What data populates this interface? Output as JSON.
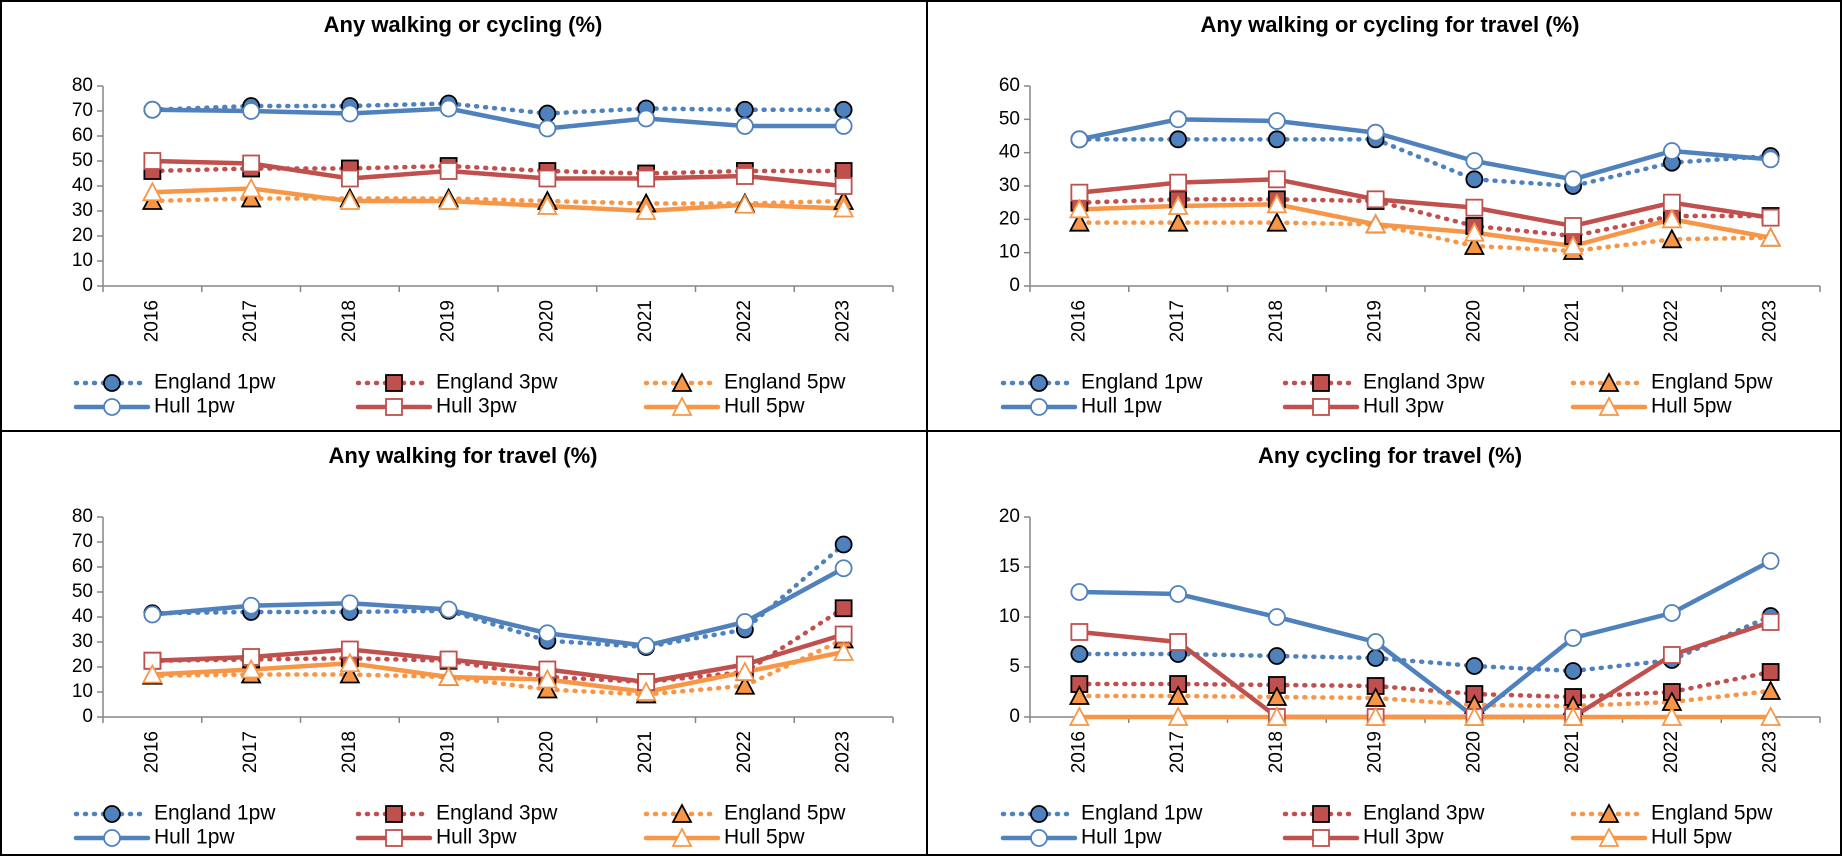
{
  "chart_data": [
    {
      "type": "line",
      "title": "Any walking or cycling (%)",
      "categories": [
        "2016",
        "2017",
        "2018",
        "2019",
        "2020",
        "2021",
        "2022",
        "2023"
      ],
      "ylim": [
        0,
        80
      ],
      "yticks": [
        0,
        10,
        20,
        30,
        40,
        50,
        60,
        70,
        80
      ],
      "series": [
        {
          "name": "England 1pw",
          "color": "#4f81bd",
          "line": "dotted",
          "marker": "circle",
          "marker_fill": "filled",
          "values": [
            70.5,
            72,
            72,
            73,
            69,
            71,
            70.5,
            70.5
          ]
        },
        {
          "name": "England 3pw",
          "color": "#c0504d",
          "line": "dotted",
          "marker": "square",
          "marker_fill": "filled",
          "values": [
            46,
            47,
            47,
            48,
            46,
            45,
            46,
            46
          ]
        },
        {
          "name": "England 5pw",
          "color": "#f79646",
          "line": "dotted",
          "marker": "triangle",
          "marker_fill": "filled",
          "values": [
            34,
            35,
            35,
            35,
            34,
            33,
            33,
            34
          ]
        },
        {
          "name": "Hull 1pw",
          "color": "#4f81bd",
          "line": "solid",
          "marker": "circle",
          "marker_fill": "hollow",
          "values": [
            70.5,
            70,
            69,
            71,
            63,
            67,
            64,
            64
          ]
        },
        {
          "name": "Hull 3pw",
          "color": "#c0504d",
          "line": "solid",
          "marker": "square",
          "marker_fill": "hollow",
          "values": [
            50,
            49,
            43,
            46,
            43,
            43,
            44,
            40
          ]
        },
        {
          "name": "Hull 5pw",
          "color": "#f79646",
          "line": "solid",
          "marker": "triangle",
          "marker_fill": "hollow",
          "values": [
            37.5,
            39,
            34,
            34,
            32,
            30,
            32.5,
            31
          ]
        }
      ]
    },
    {
      "type": "line",
      "title": "Any walking or cycling for travel (%)",
      "categories": [
        "2016",
        "2017",
        "2018",
        "2019",
        "2020",
        "2021",
        "2022",
        "2023"
      ],
      "ylim": [
        0,
        60
      ],
      "yticks": [
        0,
        10,
        20,
        30,
        40,
        50,
        60
      ],
      "series": [
        {
          "name": "England 1pw",
          "color": "#4f81bd",
          "line": "dotted",
          "marker": "circle",
          "marker_fill": "filled",
          "values": [
            44,
            44,
            44,
            44,
            32,
            30,
            37,
            39
          ]
        },
        {
          "name": "England 3pw",
          "color": "#c0504d",
          "line": "dotted",
          "marker": "square",
          "marker_fill": "filled",
          "values": [
            25,
            26,
            26,
            25.5,
            18,
            15,
            21,
            21
          ]
        },
        {
          "name": "England 5pw",
          "color": "#f79646",
          "line": "dotted",
          "marker": "triangle",
          "marker_fill": "filled",
          "values": [
            19,
            19,
            19,
            18.5,
            12,
            10.5,
            14,
            14.5
          ]
        },
        {
          "name": "Hull 1pw",
          "color": "#4f81bd",
          "line": "solid",
          "marker": "circle",
          "marker_fill": "hollow",
          "values": [
            44,
            50,
            49.5,
            46,
            37.5,
            32,
            40.5,
            38
          ]
        },
        {
          "name": "Hull 3pw",
          "color": "#c0504d",
          "line": "solid",
          "marker": "square",
          "marker_fill": "hollow",
          "values": [
            28,
            31,
            32,
            26,
            23.5,
            18,
            25,
            20.5
          ]
        },
        {
          "name": "Hull 5pw",
          "color": "#f79646",
          "line": "solid",
          "marker": "triangle",
          "marker_fill": "hollow",
          "values": [
            23,
            24,
            24.5,
            18.5,
            16,
            12,
            20,
            14.5
          ]
        }
      ]
    },
    {
      "type": "line",
      "title": "Any walking for travel (%)",
      "categories": [
        "2016",
        "2017",
        "2018",
        "2019",
        "2020",
        "2021",
        "2022",
        "2023"
      ],
      "ylim": [
        0,
        80
      ],
      "yticks": [
        0,
        10,
        20,
        30,
        40,
        50,
        60,
        70,
        80
      ],
      "series": [
        {
          "name": "England 1pw",
          "color": "#4f81bd",
          "line": "dotted",
          "marker": "circle",
          "marker_fill": "filled",
          "values": [
            41.5,
            42,
            42,
            42.5,
            30.5,
            28,
            35,
            69
          ]
        },
        {
          "name": "England 3pw",
          "color": "#c0504d",
          "line": "dotted",
          "marker": "square",
          "marker_fill": "filled",
          "values": [
            22.5,
            23,
            23.5,
            22.5,
            16,
            14,
            18,
            43.5
          ]
        },
        {
          "name": "England 5pw",
          "color": "#f79646",
          "line": "dotted",
          "marker": "triangle",
          "marker_fill": "filled",
          "values": [
            16.5,
            17,
            17,
            16,
            11,
            9,
            12.5,
            31
          ]
        },
        {
          "name": "Hull 1pw",
          "color": "#4f81bd",
          "line": "solid",
          "marker": "circle",
          "marker_fill": "hollow",
          "values": [
            41,
            44.5,
            45.5,
            43,
            33.5,
            28.5,
            38,
            59.5
          ]
        },
        {
          "name": "Hull 3pw",
          "color": "#c0504d",
          "line": "solid",
          "marker": "square",
          "marker_fill": "hollow",
          "values": [
            22.5,
            24,
            27,
            23,
            19,
            14,
            21,
            33
          ]
        },
        {
          "name": "Hull 5pw",
          "color": "#f79646",
          "line": "solid",
          "marker": "triangle",
          "marker_fill": "hollow",
          "values": [
            17,
            19,
            21.5,
            16,
            15,
            10,
            18,
            26
          ]
        }
      ]
    },
    {
      "type": "line",
      "title": "Any cycling for travel (%)",
      "categories": [
        "2016",
        "2017",
        "2018",
        "2019",
        "2020",
        "2021",
        "2022",
        "2023"
      ],
      "ylim": [
        0,
        20
      ],
      "yticks": [
        0,
        5,
        10,
        15,
        20
      ],
      "series": [
        {
          "name": "England 1pw",
          "color": "#4f81bd",
          "line": "dotted",
          "marker": "circle",
          "marker_fill": "filled",
          "values": [
            6.3,
            6.3,
            6.1,
            5.9,
            5.1,
            4.6,
            5.7,
            10.1
          ]
        },
        {
          "name": "England 3pw",
          "color": "#c0504d",
          "line": "dotted",
          "marker": "square",
          "marker_fill": "filled",
          "values": [
            3.3,
            3.3,
            3.2,
            3.1,
            2.3,
            2,
            2.5,
            4.5
          ]
        },
        {
          "name": "England 5pw",
          "color": "#f79646",
          "line": "dotted",
          "marker": "triangle",
          "marker_fill": "filled",
          "values": [
            2.1,
            2.1,
            2,
            1.9,
            1.2,
            1.1,
            1.5,
            2.6
          ]
        },
        {
          "name": "Hull 1pw",
          "color": "#4f81bd",
          "line": "solid",
          "marker": "circle",
          "marker_fill": "hollow",
          "values": [
            12.5,
            12.3,
            10,
            7.5,
            0,
            7.9,
            10.4,
            15.6
          ]
        },
        {
          "name": "Hull 3pw",
          "color": "#c0504d",
          "line": "solid",
          "marker": "square",
          "marker_fill": "hollow",
          "values": [
            8.5,
            7.5,
            0,
            0,
            0,
            0,
            6.2,
            9.5
          ]
        },
        {
          "name": "Hull 5pw",
          "color": "#f79646",
          "line": "solid",
          "marker": "triangle",
          "marker_fill": "hollow",
          "values": [
            0,
            0,
            0,
            0,
            0,
            0,
            0,
            0
          ]
        }
      ]
    }
  ]
}
